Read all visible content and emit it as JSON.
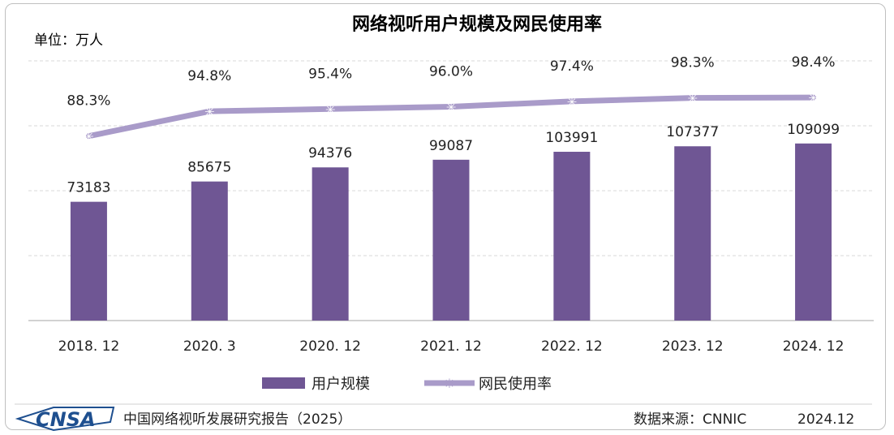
{
  "chart_data": {
    "type": "bar",
    "title": "网络视听用户规模及网民使用率",
    "unit": "单位：万人",
    "categories": [
      "2018.12",
      "2020.3",
      "2020.12",
      "2021.12",
      "2022.12",
      "2023.12",
      "2024.12"
    ],
    "category_labels": [
      "2018. 12",
      "2020. 3",
      "2020. 12",
      "2021. 12",
      "2022. 12",
      "2023. 12",
      "2024. 12"
    ],
    "series": [
      {
        "name": "用户规模",
        "type": "bar",
        "color": "#6f5694",
        "values": [
          73183,
          85675,
          94376,
          99087,
          103991,
          107377,
          109099
        ]
      },
      {
        "name": "网民使用率",
        "type": "line",
        "color": "#a99bc9",
        "values": [
          88.3,
          94.8,
          95.4,
          96.0,
          97.4,
          98.3,
          98.4
        ],
        "labels": [
          "88.3%",
          "94.8%",
          "95.4%",
          "96.0%",
          "97.4%",
          "98.3%",
          "98.4%"
        ]
      }
    ],
    "bar_ylim": [
      0,
      160000
    ],
    "line_ylim": [
      40,
      108
    ],
    "grid": true,
    "grid_style": "dashed",
    "legend_position": "bottom"
  },
  "footer": {
    "logo": "CNSA",
    "report": "中国网络视听发展研究报告（2025）",
    "source": "数据来源：CNNIC",
    "date": "2024.12"
  },
  "colors": {
    "bar": "#6f5694",
    "line": "#a99bc9",
    "logo": "#1e4f8f"
  }
}
